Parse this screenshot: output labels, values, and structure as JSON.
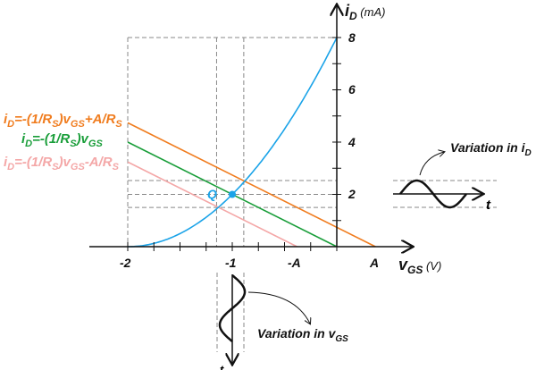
{
  "axes": {
    "y_label_main": "i",
    "y_label_sub": "D",
    "y_label_unit": " (mA)",
    "x_label_main": "v",
    "x_label_sub": "GS",
    "x_label_unit": " (V)",
    "y_ticks": [
      "2",
      "4",
      "6",
      "8"
    ],
    "x_ticks": [
      "-2",
      "-1"
    ],
    "x_marker_neg": "-A",
    "x_marker_pos": "A"
  },
  "q_point_label": "Q",
  "equations": {
    "upper": {
      "p1": "i",
      "s1": "D",
      "p2": "=-(1/R",
      "s2": "S",
      "p3": ")v",
      "s3": "GS",
      "p4": "+A/R",
      "s4": "S"
    },
    "middle": {
      "p1": "i",
      "s1": "D",
      "p2": "=-(1/R",
      "s2": "S",
      "p3": ")v",
      "s3": "GS"
    },
    "lower": {
      "p1": "i",
      "s1": "D",
      "p2": "=-(1/R",
      "s2": "S",
      "p3": ")v",
      "s3": "GS",
      "p4": "-A/R",
      "s4": "S"
    }
  },
  "variation_id": {
    "main": "Variation in i",
    "sub": "D",
    "axis": "t"
  },
  "variation_vgs": {
    "main": "Variation in v",
    "sub": "GS",
    "axis": "t"
  },
  "colors": {
    "curve": "#1aa3e8",
    "upper": "#f07c1e",
    "middle": "#1a9e3a",
    "lower": "#f4a7a7",
    "axis": "#111111"
  },
  "chart_data": {
    "type": "line",
    "xlim": [
      -2,
      0.5
    ],
    "ylim": [
      0,
      8
    ],
    "transfer_curve": {
      "IDSS": 8,
      "VP": -2
    },
    "load_lines": [
      {
        "name": "upper",
        "slope": -2,
        "intercept": 0.74
      },
      {
        "name": "middle",
        "slope": -2,
        "intercept": 0
      },
      {
        "name": "lower",
        "slope": -2,
        "intercept": -0.76
      }
    ],
    "q_point": [
      -1,
      2
    ],
    "vgs_swing": [
      -1.15,
      -0.89
    ],
    "id_swing": [
      1.5,
      2.53
    ]
  }
}
